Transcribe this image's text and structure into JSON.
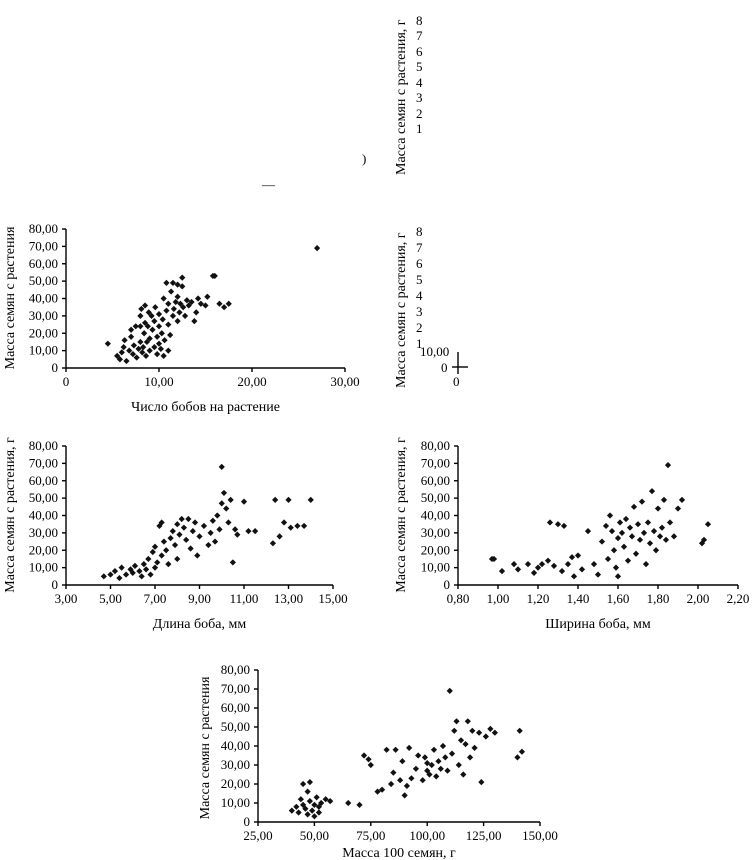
{
  "chart_data": [
    {
      "id": "pods-count",
      "type": "scatter",
      "title": "",
      "xlabel": "Число бобов на растение",
      "ylabel": "Масса семян с растения",
      "xlim": [
        0,
        30
      ],
      "ylim": [
        0,
        80
      ],
      "x_ticks": [
        "0",
        "10,00",
        "20,00",
        "30,00"
      ],
      "y_ticks": [
        "0",
        "10,00",
        "20,00",
        "30,00",
        "40,00",
        "50,00",
        "60,00",
        "70,00",
        "80,00"
      ],
      "marker": "diamond",
      "points": [
        [
          4.5,
          14
        ],
        [
          5.5,
          7
        ],
        [
          5.8,
          5
        ],
        [
          6.0,
          9
        ],
        [
          6.2,
          12
        ],
        [
          6.3,
          16
        ],
        [
          6.5,
          4
        ],
        [
          6.8,
          10
        ],
        [
          7.0,
          18
        ],
        [
          7.0,
          22
        ],
        [
          7.2,
          8
        ],
        [
          7.3,
          13
        ],
        [
          7.5,
          24
        ],
        [
          7.6,
          6
        ],
        [
          7.8,
          11
        ],
        [
          8.0,
          15
        ],
        [
          8.0,
          24
        ],
        [
          8.0,
          30
        ],
        [
          8.1,
          34
        ],
        [
          8.2,
          9
        ],
        [
          8.3,
          12
        ],
        [
          8.4,
          20
        ],
        [
          8.5,
          26
        ],
        [
          8.5,
          36
        ],
        [
          8.6,
          7
        ],
        [
          8.7,
          15
        ],
        [
          8.8,
          24
        ],
        [
          8.9,
          32
        ],
        [
          9.0,
          10
        ],
        [
          9.0,
          17
        ],
        [
          9.2,
          30
        ],
        [
          9.3,
          22
        ],
        [
          9.5,
          12
        ],
        [
          9.5,
          27
        ],
        [
          9.6,
          35
        ],
        [
          9.8,
          8
        ],
        [
          9.8,
          18
        ],
        [
          10.0,
          14
        ],
        [
          10.0,
          24
        ],
        [
          10.0,
          31
        ],
        [
          10.2,
          11
        ],
        [
          10.3,
          20
        ],
        [
          10.4,
          28
        ],
        [
          10.5,
          7
        ],
        [
          10.5,
          40
        ],
        [
          10.6,
          16
        ],
        [
          10.8,
          33
        ],
        [
          10.8,
          49
        ],
        [
          11.0,
          10
        ],
        [
          11.0,
          25
        ],
        [
          11.0,
          37
        ],
        [
          11.2,
          19
        ],
        [
          11.3,
          44
        ],
        [
          11.5,
          30
        ],
        [
          11.5,
          49
        ],
        [
          11.6,
          34
        ],
        [
          11.8,
          38
        ],
        [
          12.0,
          27
        ],
        [
          12.0,
          41
        ],
        [
          12.0,
          48
        ],
        [
          12.2,
          32
        ],
        [
          12.3,
          37
        ],
        [
          12.5,
          47
        ],
        [
          12.5,
          52
        ],
        [
          12.6,
          35
        ],
        [
          12.8,
          30
        ],
        [
          13.0,
          39
        ],
        [
          13.2,
          36
        ],
        [
          13.5,
          38
        ],
        [
          13.8,
          27
        ],
        [
          14.0,
          32
        ],
        [
          14.2,
          40
        ],
        [
          14.5,
          37
        ],
        [
          15.0,
          36
        ],
        [
          15.2,
          41
        ],
        [
          15.8,
          53
        ],
        [
          16.0,
          53
        ],
        [
          16.5,
          37
        ],
        [
          17.0,
          35
        ],
        [
          17.5,
          37
        ],
        [
          27.0,
          69
        ]
      ]
    },
    {
      "id": "pod-length",
      "type": "scatter",
      "title": "",
      "xlabel": "Длина боба, мм",
      "ylabel": "Масса семян с растения, г",
      "xlim": [
        3,
        15
      ],
      "ylim": [
        0,
        80
      ],
      "x_ticks": [
        "3,00",
        "5,00",
        "7,00",
        "9,00",
        "11,00",
        "13,00",
        "15,00"
      ],
      "y_ticks": [
        "0",
        "10,00",
        "20,00",
        "30,00",
        "40,00",
        "50,00",
        "60,00",
        "70,00",
        "80,00"
      ],
      "marker": "diamond",
      "points": [
        [
          4.7,
          5
        ],
        [
          5.0,
          6
        ],
        [
          5.2,
          8
        ],
        [
          5.4,
          4
        ],
        [
          5.5,
          10
        ],
        [
          5.7,
          6
        ],
        [
          5.9,
          9
        ],
        [
          6.0,
          7
        ],
        [
          6.1,
          11
        ],
        [
          6.3,
          8
        ],
        [
          6.4,
          5
        ],
        [
          6.5,
          12
        ],
        [
          6.6,
          9
        ],
        [
          6.7,
          15
        ],
        [
          6.8,
          6
        ],
        [
          6.9,
          19
        ],
        [
          7.0,
          10
        ],
        [
          7.0,
          22
        ],
        [
          7.1,
          13
        ],
        [
          7.2,
          34
        ],
        [
          7.3,
          17
        ],
        [
          7.3,
          36
        ],
        [
          7.4,
          25
        ],
        [
          7.5,
          20
        ],
        [
          7.6,
          12
        ],
        [
          7.7,
          27
        ],
        [
          7.8,
          31
        ],
        [
          7.9,
          23
        ],
        [
          8.0,
          35
        ],
        [
          8.0,
          15
        ],
        [
          8.1,
          29
        ],
        [
          8.2,
          38
        ],
        [
          8.3,
          33
        ],
        [
          8.4,
          26
        ],
        [
          8.5,
          38
        ],
        [
          8.6,
          21
        ],
        [
          8.7,
          31
        ],
        [
          8.8,
          36
        ],
        [
          8.9,
          17
        ],
        [
          9.0,
          28
        ],
        [
          9.2,
          34
        ],
        [
          9.4,
          23
        ],
        [
          9.5,
          30
        ],
        [
          9.6,
          37
        ],
        [
          9.7,
          25
        ],
        [
          9.8,
          40
        ],
        [
          9.9,
          32
        ],
        [
          10.0,
          47
        ],
        [
          10.0,
          68
        ],
        [
          10.1,
          53
        ],
        [
          10.2,
          44
        ],
        [
          10.3,
          36
        ],
        [
          10.4,
          49
        ],
        [
          10.5,
          13
        ],
        [
          10.6,
          32
        ],
        [
          10.7,
          29
        ],
        [
          11.0,
          48
        ],
        [
          11.2,
          31
        ],
        [
          11.5,
          31
        ],
        [
          12.3,
          24
        ],
        [
          12.4,
          49
        ],
        [
          12.6,
          28
        ],
        [
          12.8,
          36
        ],
        [
          13.0,
          49
        ],
        [
          13.1,
          33
        ],
        [
          13.4,
          34
        ],
        [
          13.7,
          34
        ],
        [
          14.0,
          49
        ]
      ]
    },
    {
      "id": "pod-width",
      "type": "scatter",
      "title": "",
      "xlabel": "Ширина боба, мм",
      "ylabel": "Масса семян с растения, г",
      "xlim": [
        0.8,
        2.2
      ],
      "ylim": [
        0,
        80
      ],
      "x_ticks": [
        "0,80",
        "1,00",
        "1,20",
        "1,40",
        "1,60",
        "1,80",
        "2,00",
        "2,20"
      ],
      "y_ticks": [
        "0",
        "10,00",
        "20,00",
        "30,00",
        "40,00",
        "50,00",
        "60,00",
        "70,00",
        "80,00"
      ],
      "marker": "diamond",
      "points": [
        [
          0.97,
          15
        ],
        [
          0.98,
          15
        ],
        [
          1.02,
          8
        ],
        [
          1.08,
          12
        ],
        [
          1.1,
          9
        ],
        [
          1.15,
          12
        ],
        [
          1.18,
          7
        ],
        [
          1.2,
          10
        ],
        [
          1.22,
          12
        ],
        [
          1.25,
          14
        ],
        [
          1.26,
          36
        ],
        [
          1.28,
          11
        ],
        [
          1.3,
          35
        ],
        [
          1.32,
          8
        ],
        [
          1.33,
          34
        ],
        [
          1.35,
          12
        ],
        [
          1.37,
          16
        ],
        [
          1.38,
          5
        ],
        [
          1.4,
          17
        ],
        [
          1.42,
          9
        ],
        [
          1.45,
          31
        ],
        [
          1.48,
          12
        ],
        [
          1.5,
          6
        ],
        [
          1.52,
          25
        ],
        [
          1.54,
          34
        ],
        [
          1.55,
          15
        ],
        [
          1.56,
          40
        ],
        [
          1.57,
          31
        ],
        [
          1.58,
          20
        ],
        [
          1.59,
          10
        ],
        [
          1.6,
          27
        ],
        [
          1.6,
          5
        ],
        [
          1.61,
          36
        ],
        [
          1.62,
          30
        ],
        [
          1.63,
          22
        ],
        [
          1.64,
          38
        ],
        [
          1.65,
          14
        ],
        [
          1.66,
          33
        ],
        [
          1.67,
          28
        ],
        [
          1.68,
          45
        ],
        [
          1.69,
          18
        ],
        [
          1.7,
          35
        ],
        [
          1.71,
          26
        ],
        [
          1.72,
          48
        ],
        [
          1.73,
          30
        ],
        [
          1.74,
          12
        ],
        [
          1.75,
          36
        ],
        [
          1.76,
          24
        ],
        [
          1.77,
          54
        ],
        [
          1.78,
          31
        ],
        [
          1.79,
          20
        ],
        [
          1.8,
          44
        ],
        [
          1.81,
          28
        ],
        [
          1.82,
          33
        ],
        [
          1.83,
          49
        ],
        [
          1.84,
          26
        ],
        [
          1.85,
          69
        ],
        [
          1.86,
          36
        ],
        [
          1.88,
          28
        ],
        [
          1.9,
          44
        ],
        [
          1.92,
          49
        ],
        [
          2.02,
          24
        ],
        [
          2.03,
          26
        ],
        [
          2.05,
          35
        ]
      ]
    },
    {
      "id": "seed-mass-100",
      "type": "scatter",
      "title": "",
      "xlabel": "Масса 100 семян, г",
      "ylabel": "Масса семян с растения",
      "xlim": [
        25,
        150
      ],
      "ylim": [
        0,
        80
      ],
      "x_ticks": [
        "25,00",
        "50,00",
        "75,00",
        "100,00",
        "125,00",
        "150,00"
      ],
      "y_ticks": [
        "0",
        "10,00",
        "20,00",
        "30,00",
        "40,00",
        "50,00",
        "60,00",
        "70,00",
        "80,00"
      ],
      "marker": "diamond",
      "points": [
        [
          40,
          6
        ],
        [
          42,
          8
        ],
        [
          43,
          5
        ],
        [
          44,
          12
        ],
        [
          45,
          20
        ],
        [
          45,
          9
        ],
        [
          46,
          7
        ],
        [
          47,
          4
        ],
        [
          47,
          16
        ],
        [
          48,
          11
        ],
        [
          48,
          21
        ],
        [
          49,
          6
        ],
        [
          50,
          3
        ],
        [
          50,
          9
        ],
        [
          51,
          13
        ],
        [
          52,
          5
        ],
        [
          52,
          8
        ],
        [
          53,
          10
        ],
        [
          55,
          12
        ],
        [
          57,
          11
        ],
        [
          65,
          10
        ],
        [
          70,
          9
        ],
        [
          72,
          35
        ],
        [
          74,
          33
        ],
        [
          75,
          30
        ],
        [
          78,
          16
        ],
        [
          80,
          17
        ],
        [
          82,
          38
        ],
        [
          84,
          20
        ],
        [
          85,
          26
        ],
        [
          86,
          38
        ],
        [
          88,
          22
        ],
        [
          89,
          32
        ],
        [
          90,
          14
        ],
        [
          91,
          19
        ],
        [
          92,
          39
        ],
        [
          93,
          23
        ],
        [
          95,
          28
        ],
        [
          96,
          35
        ],
        [
          98,
          22
        ],
        [
          99,
          34
        ],
        [
          100,
          27
        ],
        [
          100,
          31
        ],
        [
          101,
          25
        ],
        [
          102,
          30
        ],
        [
          103,
          38
        ],
        [
          104,
          24
        ],
        [
          105,
          32
        ],
        [
          106,
          28
        ],
        [
          107,
          40
        ],
        [
          108,
          34
        ],
        [
          109,
          27
        ],
        [
          110,
          69
        ],
        [
          111,
          36
        ],
        [
          112,
          48
        ],
        [
          113,
          53
        ],
        [
          114,
          30
        ],
        [
          115,
          43
        ],
        [
          116,
          25
        ],
        [
          117,
          41
        ],
        [
          118,
          53
        ],
        [
          119,
          34
        ],
        [
          120,
          48
        ],
        [
          121,
          39
        ],
        [
          123,
          47
        ],
        [
          124,
          21
        ],
        [
          126,
          45
        ],
        [
          128,
          49
        ],
        [
          130,
          47
        ],
        [
          140,
          34
        ],
        [
          141,
          48
        ],
        [
          142,
          37
        ]
      ]
    }
  ],
  "fragments": {
    "top_right_ylabel": "Масса семян с растения, г",
    "top_right_ticks": [
      "8",
      "7",
      "6",
      "5",
      "4",
      "3",
      "2",
      "1"
    ],
    "top_right_mark": ")",
    "top_center_mark": "—",
    "middle_right_ylabel": "Масса семян с растения, г",
    "middle_right_ticks": [
      "8",
      "7",
      "6",
      "5",
      "4",
      "3",
      "2",
      "1"
    ],
    "middle_right_bottom_tick": "10,00",
    "middle_right_zero_y": "0",
    "middle_right_zero_x": "0"
  }
}
